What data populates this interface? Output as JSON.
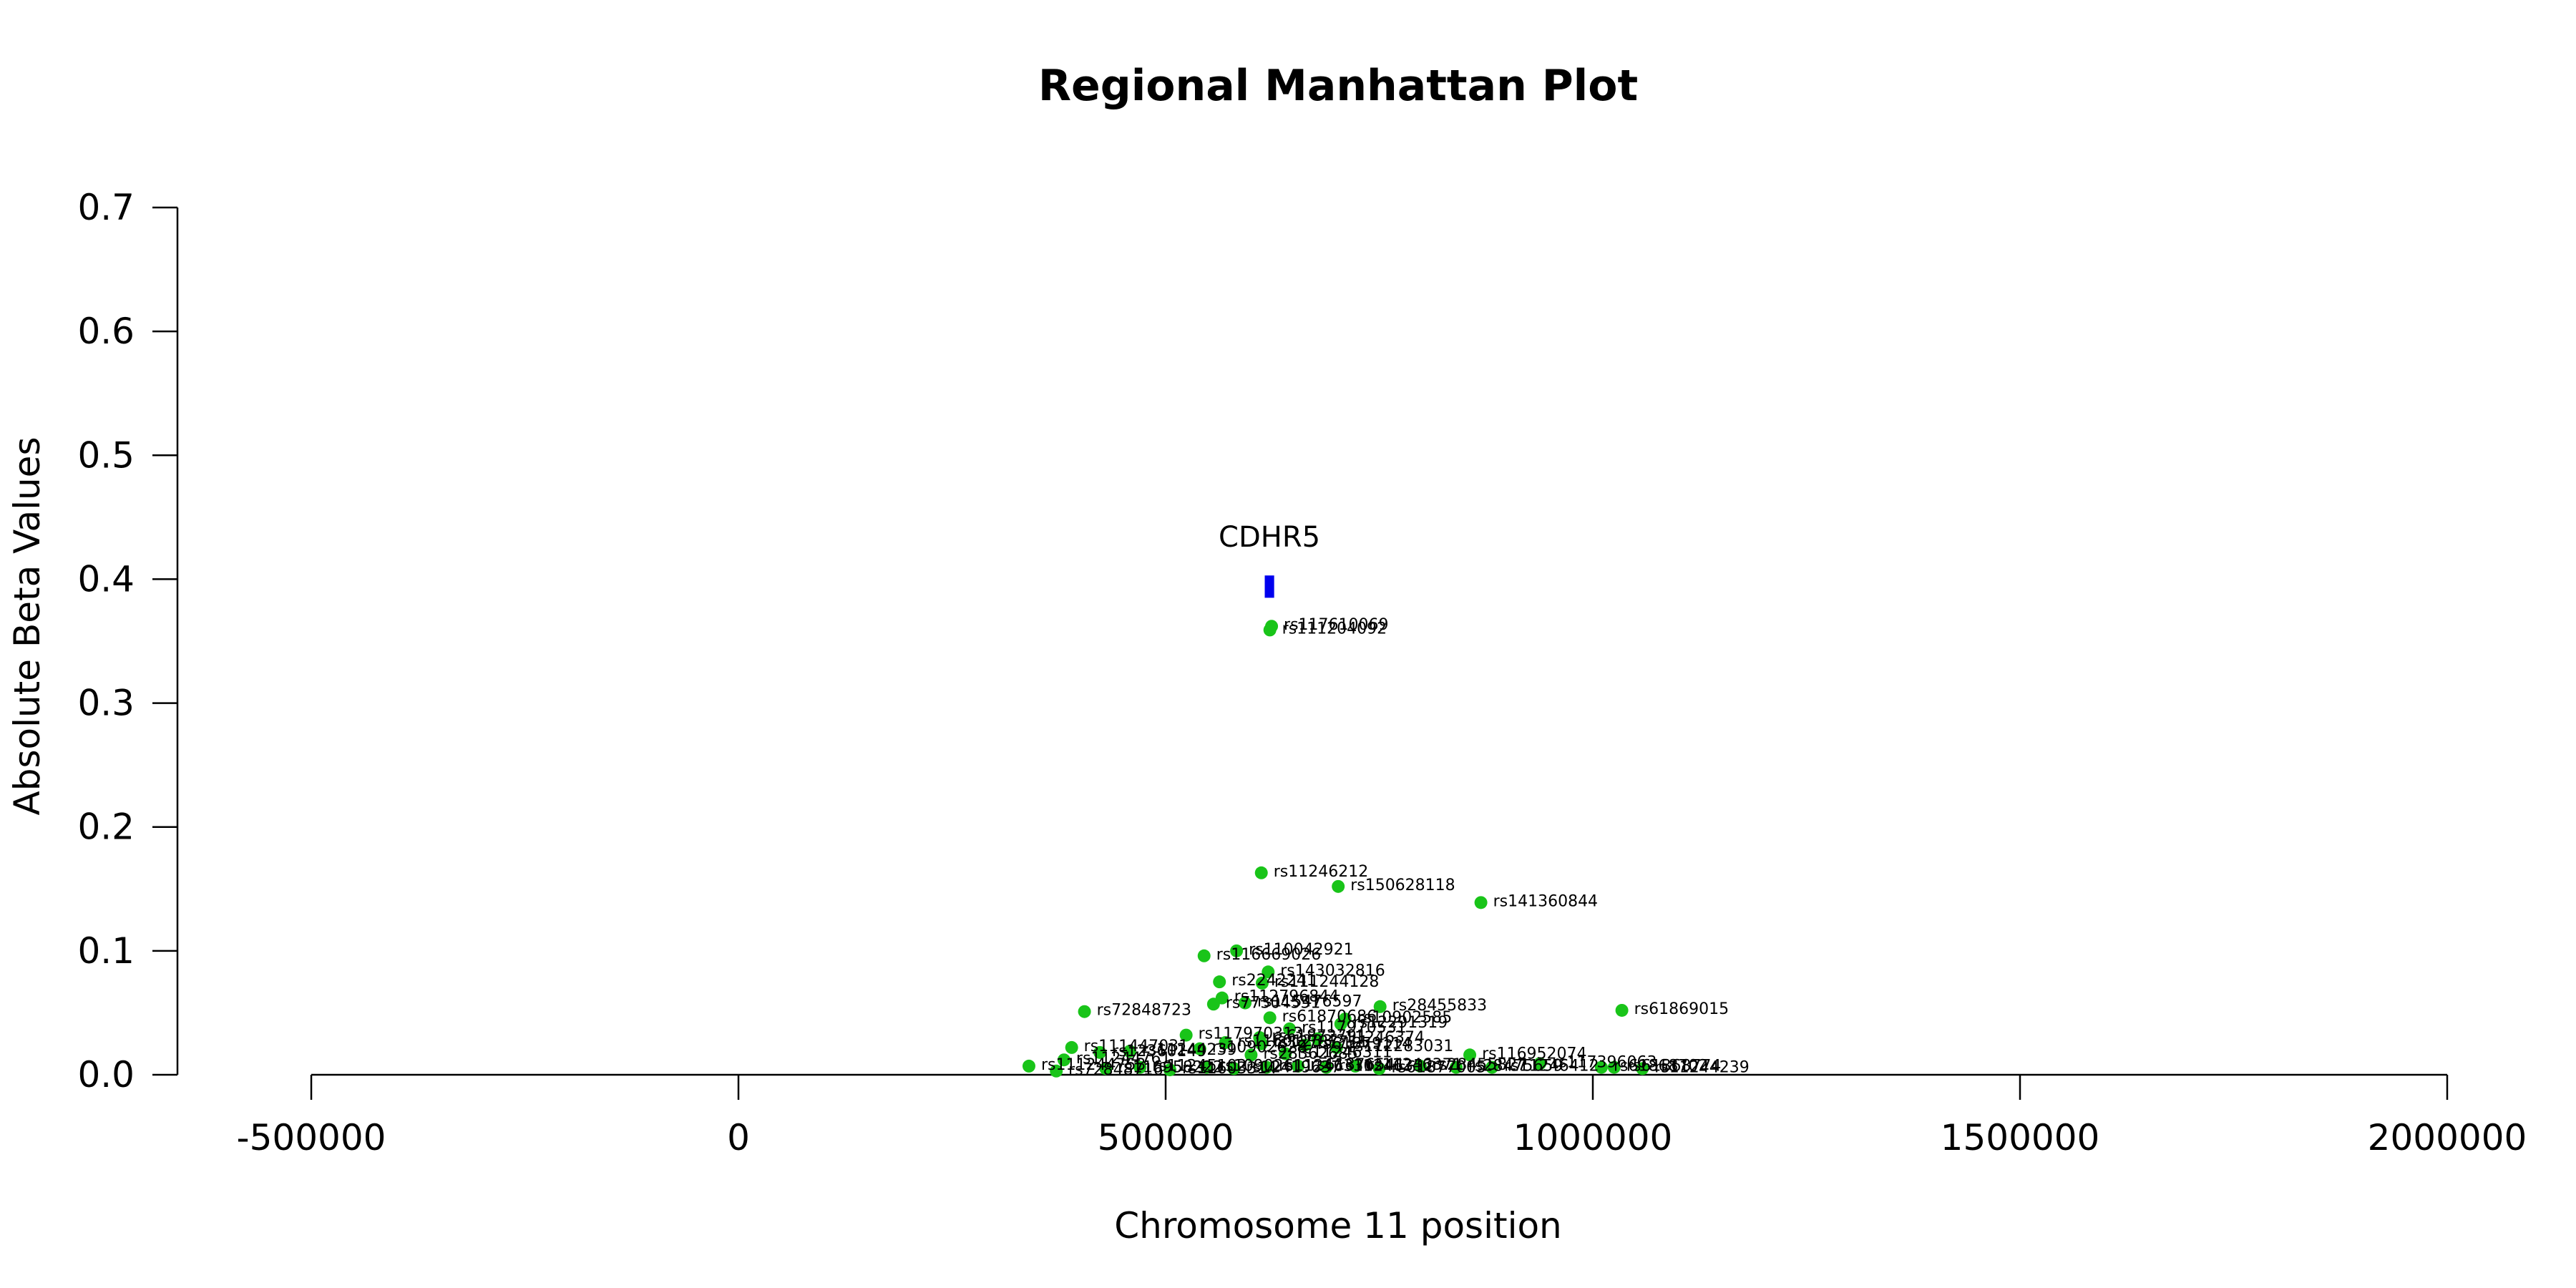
{
  "chart_data": {
    "type": "scatter",
    "title": "Regional Manhattan Plot",
    "xlabel": "Chromosome 11 position",
    "ylabel": "Absolute Beta Values",
    "xlim": [
      -500000,
      2000000
    ],
    "ylim": [
      0,
      0.7
    ],
    "x_ticks": [
      -500000,
      0,
      500000,
      1000000,
      1500000,
      2000000
    ],
    "x_tick_labels": [
      "-500000",
      "0",
      "500000",
      "1000000",
      "1500000",
      "2000000"
    ],
    "y_ticks": [
      0,
      0.1,
      0.2,
      0.3,
      0.4,
      0.5,
      0.6,
      0.7
    ],
    "y_tick_labels": [
      "0.0",
      "0.1",
      "0.2",
      "0.3",
      "0.4",
      "0.5",
      "0.6",
      "0.7"
    ],
    "grid": false,
    "point_color": "#19c419",
    "gene_color": "#0000ee",
    "gene": {
      "name": "CDHR5",
      "x_start": 616000,
      "x_end": 627000,
      "y_low": 0.385,
      "y_high": 0.403
    },
    "points": [
      {
        "x": 624000,
        "y": 0.362,
        "label": "rs117610069"
      },
      {
        "x": 622000,
        "y": 0.359,
        "label": "rs111204092"
      },
      {
        "x": 612000,
        "y": 0.163,
        "label": "rs11246212"
      },
      {
        "x": 702000,
        "y": 0.152,
        "label": "rs150628118"
      },
      {
        "x": 869000,
        "y": 0.139,
        "label": "rs141360844"
      },
      {
        "x": 583000,
        "y": 0.1,
        "label": "rs110042921"
      },
      {
        "x": 545000,
        "y": 0.096,
        "label": "rs116669026"
      },
      {
        "x": 620000,
        "y": 0.083,
        "label": "rs143032816"
      },
      {
        "x": 563000,
        "y": 0.075,
        "label": "rs2242241"
      },
      {
        "x": 613000,
        "y": 0.074,
        "label": "rs111244128"
      },
      {
        "x": 566000,
        "y": 0.062,
        "label": "rs112796844"
      },
      {
        "x": 556000,
        "y": 0.057,
        "label": "rs77304551"
      },
      {
        "x": 593000,
        "y": 0.058,
        "label": "rs115476597"
      },
      {
        "x": 751000,
        "y": 0.055,
        "label": "rs28455833"
      },
      {
        "x": 1034000,
        "y": 0.052,
        "label": "rs61869015"
      },
      {
        "x": 405000,
        "y": 0.051,
        "label": "rs72848723"
      },
      {
        "x": 622000,
        "y": 0.046,
        "label": "rs61870686"
      },
      {
        "x": 710000,
        "y": 0.045,
        "label": "rs10902585"
      },
      {
        "x": 705000,
        "y": 0.041,
        "label": "rs12291319"
      },
      {
        "x": 645000,
        "y": 0.037,
        "label": "rs117970531"
      },
      {
        "x": 524000,
        "y": 0.032,
        "label": "rs117970313"
      },
      {
        "x": 610000,
        "y": 0.03,
        "label": "rs61872791"
      },
      {
        "x": 678000,
        "y": 0.029,
        "label": "rs11246374"
      },
      {
        "x": 390000,
        "y": 0.022,
        "label": "rs111447031"
      },
      {
        "x": 570000,
        "y": 0.026,
        "label": "rs11601233"
      },
      {
        "x": 612000,
        "y": 0.025,
        "label": "rs12787711"
      },
      {
        "x": 663000,
        "y": 0.024,
        "label": "rs61879114"
      },
      {
        "x": 700000,
        "y": 0.022,
        "label": "rs112283031"
      },
      {
        "x": 423000,
        "y": 0.018,
        "label": "rs12360149"
      },
      {
        "x": 458000,
        "y": 0.019,
        "label": "rs11244239"
      },
      {
        "x": 540000,
        "y": 0.021,
        "label": "rs10902628"
      },
      {
        "x": 600000,
        "y": 0.016,
        "label": "rs28362685"
      },
      {
        "x": 640000,
        "y": 0.017,
        "label": "rs11246311"
      },
      {
        "x": 856000,
        "y": 0.016,
        "label": "rs116952074"
      },
      {
        "x": 938000,
        "y": 0.009,
        "label": "rs117396063"
      },
      {
        "x": 381000,
        "y": 0.012,
        "label": "rs11244761"
      },
      {
        "x": 340000,
        "y": 0.007,
        "label": "rs111244753"
      },
      {
        "x": 372000,
        "y": 0.003,
        "label": "rs72848716"
      },
      {
        "x": 430000,
        "y": 0.005,
        "label": "rs116958222"
      },
      {
        "x": 470000,
        "y": 0.006,
        "label": "rs11245102"
      },
      {
        "x": 505000,
        "y": 0.004,
        "label": "rs11603314"
      },
      {
        "x": 548000,
        "y": 0.006,
        "label": "rs10902611"
      },
      {
        "x": 580000,
        "y": 0.005,
        "label": "rs12419637"
      },
      {
        "x": 618000,
        "y": 0.006,
        "label": "rs11246330"
      },
      {
        "x": 655000,
        "y": 0.007,
        "label": "rs61876541"
      },
      {
        "x": 688000,
        "y": 0.006,
        "label": "rs11246352"
      },
      {
        "x": 722000,
        "y": 0.007,
        "label": "rs11246371"
      },
      {
        "x": 750000,
        "y": 0.005,
        "label": "rs61877005"
      },
      {
        "x": 798000,
        "y": 0.007,
        "label": "rs28455827"
      },
      {
        "x": 840000,
        "y": 0.006,
        "label": "rs28475659"
      },
      {
        "x": 882000,
        "y": 0.006,
        "label": "rs11246412"
      },
      {
        "x": 1010000,
        "y": 0.006,
        "label": "rs61868702"
      },
      {
        "x": 1025000,
        "y": 0.006,
        "label": "rs61868774"
      },
      {
        "x": 1058000,
        "y": 0.005,
        "label": "rs11244239"
      }
    ]
  }
}
